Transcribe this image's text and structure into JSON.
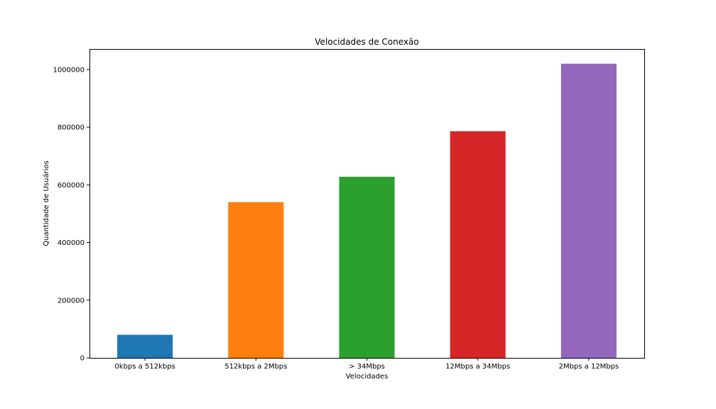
{
  "chart_data": {
    "type": "bar",
    "title": "Velocidades de Conexão",
    "xlabel": "Velocidades",
    "ylabel": "Quantidade de Usuários",
    "categories": [
      "0kbps a 512kbps",
      "512kbps a 2Mbps",
      "> 34Mbps",
      "12Mbps a 34Mbps",
      "2Mbps a 12Mbps"
    ],
    "values": [
      80000,
      540000,
      628000,
      786000,
      1020000
    ],
    "colors": [
      "#1f77b4",
      "#ff7f0e",
      "#2ca02c",
      "#d62728",
      "#9467bd"
    ],
    "ylim": [
      0,
      1071000
    ],
    "yticks": [
      0,
      200000,
      400000,
      600000,
      800000,
      1000000
    ],
    "grid": false,
    "legend": "none"
  }
}
